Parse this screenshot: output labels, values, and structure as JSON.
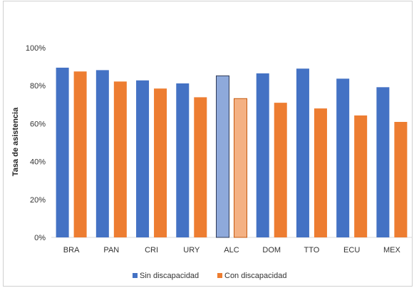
{
  "chart_data": {
    "type": "bar",
    "categories": [
      "BRA",
      "PAN",
      "CRI",
      "URY",
      "ALC",
      "DOM",
      "TTO",
      "ECU",
      "MEX"
    ],
    "series": [
      {
        "name": "Sin discapacidad",
        "values": [
          89.5,
          88.2,
          82.8,
          81.2,
          85.2,
          86.5,
          89.0,
          83.7,
          79.2
        ],
        "color": "#4472C4"
      },
      {
        "name": "Con discapacidad",
        "values": [
          87.5,
          82.2,
          78.5,
          73.9,
          73.2,
          71.0,
          68.0,
          64.3,
          60.9
        ],
        "color": "#ED7D31"
      }
    ],
    "highlight": {
      "category": "ALC",
      "colors": [
        "#8EA9DB",
        "#F4B183"
      ]
    },
    "ylabel": "Tasa de asistencia",
    "xlabel": "",
    "ylim": [
      0,
      100
    ],
    "yticks": [
      "0%",
      "20%",
      "40%",
      "60%",
      "80%",
      "100%"
    ],
    "grid": false,
    "legend_position": "bottom"
  }
}
